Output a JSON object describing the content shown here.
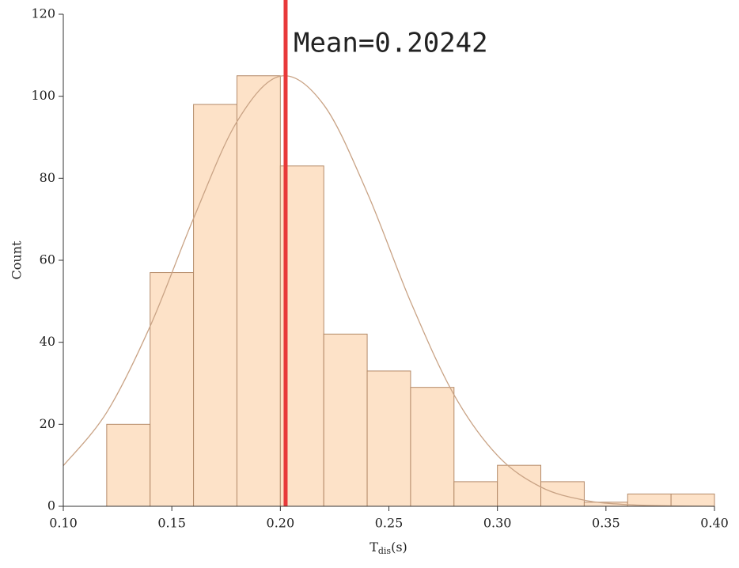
{
  "chart_data": {
    "type": "histogram",
    "bins": [
      0.12,
      0.14,
      0.16,
      0.18,
      0.2,
      0.22,
      0.24,
      0.26,
      0.28,
      0.3,
      0.32,
      0.34,
      0.36,
      0.38,
      0.4
    ],
    "values": [
      20,
      57,
      98,
      105,
      83,
      42,
      33,
      29,
      6,
      10,
      6,
      1,
      3,
      3
    ],
    "color": "#fde2c8",
    "edge_color": "#b48a68",
    "curve": {
      "color": "#c9a385",
      "x": [
        0.1,
        0.12,
        0.14,
        0.16,
        0.18,
        0.2,
        0.22,
        0.24,
        0.26,
        0.28,
        0.3,
        0.32,
        0.34,
        0.36,
        0.38,
        0.4
      ],
      "values": [
        9.9,
        22.9,
        43.9,
        70.2,
        93.8,
        104.9,
        97.9,
        76.5,
        49.9,
        27.2,
        12.4,
        4.7,
        1.5,
        0.4,
        0.1,
        0.0
      ]
    },
    "mean": 0.20242,
    "mean_color": "#e8393a",
    "annotation": "Mean=0.20242",
    "ylabel": "Count",
    "xlabel_parts": [
      "T",
      "dis",
      "(s)"
    ],
    "xlim": [
      0.1,
      0.4
    ],
    "ylim": [
      0,
      120
    ],
    "xticks": [
      {
        "value": 0.1,
        "label": "0.10"
      },
      {
        "value": 0.15,
        "label": "0.15"
      },
      {
        "value": 0.2,
        "label": "0.20"
      },
      {
        "value": 0.25,
        "label": "0.25"
      },
      {
        "value": 0.3,
        "label": "0.30"
      },
      {
        "value": 0.35,
        "label": "0.35"
      },
      {
        "value": 0.4,
        "label": "0.40"
      }
    ],
    "yticks": [
      0,
      20,
      40,
      60,
      80,
      100,
      120
    ]
  }
}
